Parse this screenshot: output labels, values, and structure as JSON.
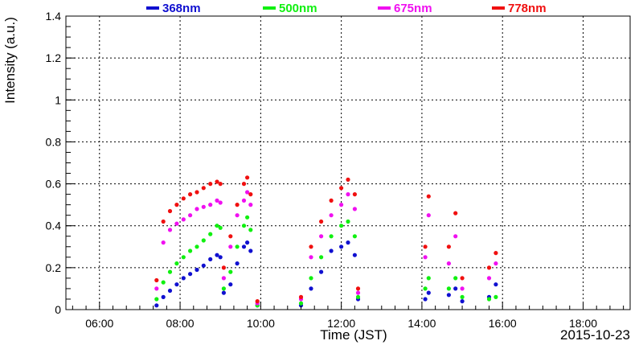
{
  "chart_data": {
    "type": "scatter",
    "title": "",
    "xlabel": "Time (JST)",
    "ylabel": "Intensity (a.u.)",
    "date_label": "2015-10-23",
    "xlim": [
      "05:10",
      "19:10"
    ],
    "ylim": [
      0,
      1.4
    ],
    "x_ticks": [
      "06:00",
      "08:00",
      "10:00",
      "12:00",
      "14:00",
      "16:00",
      "18:00"
    ],
    "y_ticks": [
      "0",
      "0.2",
      "0.4",
      "0.6",
      "0.8",
      "1",
      "1.2",
      "1.4"
    ],
    "y_tick_values": [
      0,
      0.2,
      0.4,
      0.6,
      0.8,
      1.0,
      1.2,
      1.4
    ],
    "grid": true,
    "legend_position": "top",
    "colors": {
      "368nm": "#1010d0",
      "500nm": "#10f010",
      "675nm": "#f010f0",
      "778nm": "#f01010"
    },
    "series": [
      {
        "name": "368nm",
        "color": "#1010d0",
        "points": [
          [
            "07:25",
            0.02
          ],
          [
            "07:35",
            0.06
          ],
          [
            "07:45",
            0.09
          ],
          [
            "07:55",
            0.12
          ],
          [
            "08:05",
            0.15
          ],
          [
            "08:15",
            0.17
          ],
          [
            "08:25",
            0.19
          ],
          [
            "08:35",
            0.21
          ],
          [
            "08:45",
            0.24
          ],
          [
            "08:55",
            0.26
          ],
          [
            "09:00",
            0.25
          ],
          [
            "09:05",
            0.08
          ],
          [
            "09:15",
            0.12
          ],
          [
            "09:25",
            0.22
          ],
          [
            "09:35",
            0.3
          ],
          [
            "09:40",
            0.32
          ],
          [
            "09:45",
            0.28
          ],
          [
            "09:55",
            0.02
          ],
          [
            "11:00",
            0.02
          ],
          [
            "11:15",
            0.1
          ],
          [
            "11:30",
            0.18
          ],
          [
            "11:45",
            0.28
          ],
          [
            "12:00",
            0.3
          ],
          [
            "12:10",
            0.32
          ],
          [
            "12:20",
            0.26
          ],
          [
            "12:25",
            0.05
          ],
          [
            "14:05",
            0.05
          ],
          [
            "14:10",
            0.08
          ],
          [
            "14:40",
            0.07
          ],
          [
            "14:50",
            0.1
          ],
          [
            "15:00",
            0.04
          ],
          [
            "15:40",
            0.06
          ],
          [
            "15:50",
            0.12
          ]
        ]
      },
      {
        "name": "500nm",
        "color": "#10f010",
        "points": [
          [
            "07:25",
            0.05
          ],
          [
            "07:35",
            0.13
          ],
          [
            "07:45",
            0.18
          ],
          [
            "07:55",
            0.22
          ],
          [
            "08:05",
            0.25
          ],
          [
            "08:15",
            0.28
          ],
          [
            "08:25",
            0.3
          ],
          [
            "08:35",
            0.33
          ],
          [
            "08:45",
            0.36
          ],
          [
            "08:55",
            0.4
          ],
          [
            "09:00",
            0.39
          ],
          [
            "09:05",
            0.1
          ],
          [
            "09:15",
            0.18
          ],
          [
            "09:25",
            0.3
          ],
          [
            "09:35",
            0.4
          ],
          [
            "09:40",
            0.44
          ],
          [
            "09:45",
            0.38
          ],
          [
            "09:55",
            0.02
          ],
          [
            "11:00",
            0.03
          ],
          [
            "11:15",
            0.15
          ],
          [
            "11:30",
            0.25
          ],
          [
            "11:45",
            0.35
          ],
          [
            "12:00",
            0.4
          ],
          [
            "12:10",
            0.42
          ],
          [
            "12:20",
            0.35
          ],
          [
            "12:25",
            0.06
          ],
          [
            "14:05",
            0.1
          ],
          [
            "14:10",
            0.15
          ],
          [
            "14:40",
            0.1
          ],
          [
            "14:50",
            0.15
          ],
          [
            "15:00",
            0.06
          ],
          [
            "15:40",
            0.05
          ],
          [
            "15:50",
            0.06
          ]
        ]
      },
      {
        "name": "675nm",
        "color": "#f010f0",
        "points": [
          [
            "07:25",
            0.1
          ],
          [
            "07:35",
            0.32
          ],
          [
            "07:45",
            0.38
          ],
          [
            "07:55",
            0.41
          ],
          [
            "08:05",
            0.43
          ],
          [
            "08:15",
            0.45
          ],
          [
            "08:25",
            0.48
          ],
          [
            "08:35",
            0.49
          ],
          [
            "08:45",
            0.5
          ],
          [
            "08:55",
            0.52
          ],
          [
            "09:00",
            0.51
          ],
          [
            "09:05",
            0.15
          ],
          [
            "09:15",
            0.3
          ],
          [
            "09:25",
            0.45
          ],
          [
            "09:35",
            0.52
          ],
          [
            "09:40",
            0.56
          ],
          [
            "09:45",
            0.5
          ],
          [
            "09:55",
            0.03
          ],
          [
            "11:00",
            0.05
          ],
          [
            "11:15",
            0.25
          ],
          [
            "11:30",
            0.35
          ],
          [
            "11:45",
            0.45
          ],
          [
            "12:00",
            0.5
          ],
          [
            "12:10",
            0.55
          ],
          [
            "12:20",
            0.48
          ],
          [
            "12:25",
            0.08
          ],
          [
            "14:05",
            0.25
          ],
          [
            "14:10",
            0.45
          ],
          [
            "14:40",
            0.22
          ],
          [
            "14:50",
            0.35
          ],
          [
            "15:00",
            0.1
          ],
          [
            "15:40",
            0.15
          ],
          [
            "15:50",
            0.22
          ]
        ]
      },
      {
        "name": "778nm",
        "color": "#f01010",
        "points": [
          [
            "07:25",
            0.14
          ],
          [
            "07:35",
            0.42
          ],
          [
            "07:45",
            0.47
          ],
          [
            "07:55",
            0.5
          ],
          [
            "08:05",
            0.53
          ],
          [
            "08:15",
            0.55
          ],
          [
            "08:25",
            0.56
          ],
          [
            "08:35",
            0.58
          ],
          [
            "08:45",
            0.6
          ],
          [
            "08:55",
            0.61
          ],
          [
            "09:00",
            0.6
          ],
          [
            "09:05",
            0.2
          ],
          [
            "09:15",
            0.35
          ],
          [
            "09:25",
            0.5
          ],
          [
            "09:35",
            0.6
          ],
          [
            "09:40",
            0.63
          ],
          [
            "09:45",
            0.55
          ],
          [
            "09:55",
            0.04
          ],
          [
            "11:00",
            0.06
          ],
          [
            "11:15",
            0.3
          ],
          [
            "11:30",
            0.42
          ],
          [
            "11:45",
            0.52
          ],
          [
            "12:00",
            0.58
          ],
          [
            "12:10",
            0.62
          ],
          [
            "12:20",
            0.55
          ],
          [
            "12:25",
            0.1
          ],
          [
            "14:05",
            0.3
          ],
          [
            "14:10",
            0.54
          ],
          [
            "14:40",
            0.3
          ],
          [
            "14:50",
            0.46
          ],
          [
            "15:00",
            0.15
          ],
          [
            "15:40",
            0.2
          ],
          [
            "15:50",
            0.27
          ]
        ]
      }
    ]
  }
}
